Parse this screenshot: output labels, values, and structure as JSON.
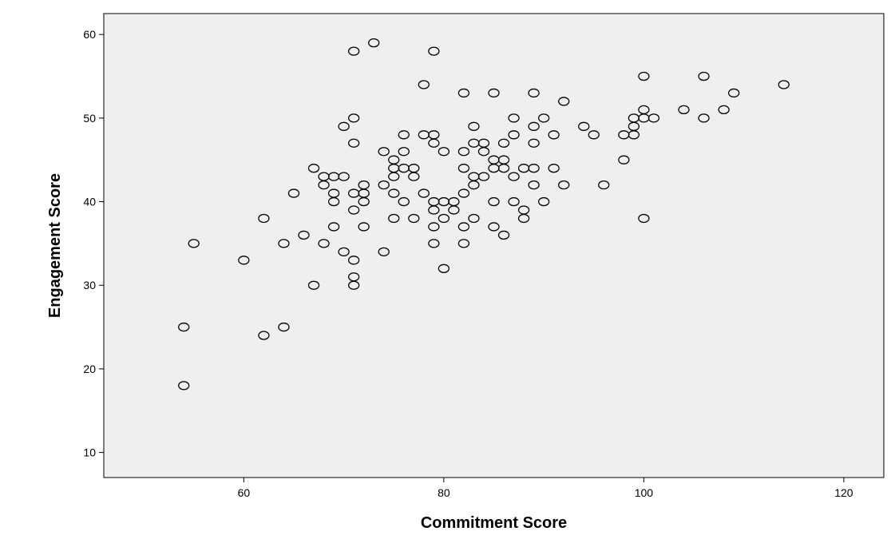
{
  "chart_data": {
    "type": "scatter",
    "title": "",
    "xlabel": "Commitment Score",
    "ylabel": "Engagement Score",
    "xlim": [
      46,
      124
    ],
    "ylim": [
      7,
      62.5
    ],
    "xticks": [
      60,
      80,
      100,
      120
    ],
    "yticks": [
      10,
      20,
      30,
      40,
      50,
      60
    ],
    "grid": false,
    "legend": "none",
    "colors": {
      "plot_background": "#efefef",
      "marker_edge": "#000000",
      "page_background": "#ffffff"
    },
    "points": [
      [
        54,
        25
      ],
      [
        54,
        18
      ],
      [
        55,
        35
      ],
      [
        60,
        33
      ],
      [
        62,
        38
      ],
      [
        62,
        24
      ],
      [
        64,
        35
      ],
      [
        64,
        25
      ],
      [
        65,
        41
      ],
      [
        66,
        36
      ],
      [
        67,
        44
      ],
      [
        67,
        30
      ],
      [
        68,
        43
      ],
      [
        68,
        42
      ],
      [
        68,
        35
      ],
      [
        69,
        43
      ],
      [
        69,
        41
      ],
      [
        69,
        40
      ],
      [
        69,
        37
      ],
      [
        70,
        49
      ],
      [
        70,
        43
      ],
      [
        70,
        34
      ],
      [
        71,
        58
      ],
      [
        71,
        50
      ],
      [
        71,
        47
      ],
      [
        71,
        41
      ],
      [
        71,
        39
      ],
      [
        71,
        33
      ],
      [
        71,
        31
      ],
      [
        71,
        30
      ],
      [
        72,
        42
      ],
      [
        72,
        41
      ],
      [
        72,
        40
      ],
      [
        72,
        37
      ],
      [
        73,
        59
      ],
      [
        74,
        46
      ],
      [
        74,
        42
      ],
      [
        74,
        34
      ],
      [
        75,
        45
      ],
      [
        75,
        44
      ],
      [
        75,
        43
      ],
      [
        75,
        41
      ],
      [
        75,
        38
      ],
      [
        76,
        48
      ],
      [
        76,
        46
      ],
      [
        76,
        44
      ],
      [
        76,
        40
      ],
      [
        77,
        44
      ],
      [
        77,
        43
      ],
      [
        77,
        38
      ],
      [
        78,
        54
      ],
      [
        78,
        48
      ],
      [
        78,
        41
      ],
      [
        79,
        58
      ],
      [
        79,
        48
      ],
      [
        79,
        47
      ],
      [
        79,
        40
      ],
      [
        79,
        39
      ],
      [
        79,
        37
      ],
      [
        79,
        35
      ],
      [
        80,
        46
      ],
      [
        80,
        40
      ],
      [
        80,
        38
      ],
      [
        80,
        32
      ],
      [
        81,
        40
      ],
      [
        81,
        39
      ],
      [
        82,
        53
      ],
      [
        82,
        46
      ],
      [
        82,
        44
      ],
      [
        82,
        41
      ],
      [
        82,
        37
      ],
      [
        82,
        35
      ],
      [
        83,
        49
      ],
      [
        83,
        47
      ],
      [
        83,
        43
      ],
      [
        83,
        42
      ],
      [
        83,
        38
      ],
      [
        84,
        47
      ],
      [
        84,
        46
      ],
      [
        84,
        43
      ],
      [
        85,
        53
      ],
      [
        85,
        45
      ],
      [
        85,
        44
      ],
      [
        85,
        40
      ],
      [
        85,
        37
      ],
      [
        86,
        47
      ],
      [
        86,
        45
      ],
      [
        86,
        44
      ],
      [
        86,
        36
      ],
      [
        87,
        50
      ],
      [
        87,
        48
      ],
      [
        87,
        43
      ],
      [
        87,
        40
      ],
      [
        88,
        44
      ],
      [
        88,
        39
      ],
      [
        88,
        38
      ],
      [
        89,
        53
      ],
      [
        89,
        49
      ],
      [
        89,
        47
      ],
      [
        89,
        44
      ],
      [
        89,
        42
      ],
      [
        90,
        50
      ],
      [
        90,
        40
      ],
      [
        91,
        48
      ],
      [
        91,
        44
      ],
      [
        92,
        52
      ],
      [
        92,
        42
      ],
      [
        94,
        49
      ],
      [
        95,
        48
      ],
      [
        96,
        42
      ],
      [
        98,
        48
      ],
      [
        98,
        45
      ],
      [
        99,
        50
      ],
      [
        99,
        49
      ],
      [
        99,
        48
      ],
      [
        100,
        55
      ],
      [
        100,
        51
      ],
      [
        100,
        50
      ],
      [
        100,
        38
      ],
      [
        101,
        50
      ],
      [
        104,
        51
      ],
      [
        106,
        55
      ],
      [
        106,
        50
      ],
      [
        108,
        51
      ],
      [
        109,
        53
      ],
      [
        114,
        54
      ]
    ]
  }
}
